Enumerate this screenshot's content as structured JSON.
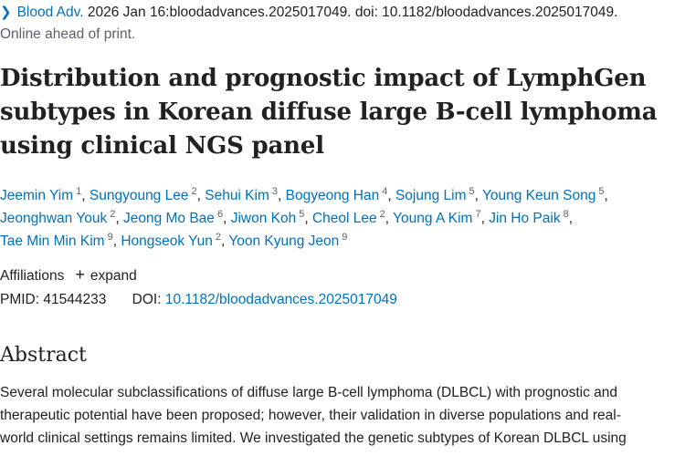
{
  "citation": {
    "journal": "Blood Adv.",
    "details": " 2026 Jan 16:bloodadvances.2025017049. doi: 10.1182/bloodadvances.2025017049.",
    "status": "Online ahead of print."
  },
  "title": {
    "line1": "Distribution and prognostic impact of LymphGen",
    "line2": "subtypes in Korean diffuse large B-cell lymphoma",
    "line3": "using clinical NGS panel"
  },
  "authors": [
    {
      "name": "Jeemin Yim",
      "aff": "1"
    },
    {
      "name": "Sungyoung Lee",
      "aff": "2"
    },
    {
      "name": "Sehui Kim",
      "aff": "3"
    },
    {
      "name": "Bogyeong Han",
      "aff": "4"
    },
    {
      "name": "Sojung Lim",
      "aff": "5"
    },
    {
      "name": "Young Keun Song",
      "aff": "5"
    },
    {
      "name": "Jeonghwan Youk",
      "aff": "2"
    },
    {
      "name": "Jeong Mo Bae",
      "aff": "6"
    },
    {
      "name": "Jiwon Koh",
      "aff": "5"
    },
    {
      "name": "Cheol Lee",
      "aff": "2"
    },
    {
      "name": "Young A Kim",
      "aff": "7"
    },
    {
      "name": "Jin Ho Paik",
      "aff": "8"
    },
    {
      "name": "Tae Min Min Kim",
      "aff": "9"
    },
    {
      "name": "Hongseok Yun",
      "aff": "2"
    },
    {
      "name": "Yoon Kyung Jeon",
      "aff": "9"
    }
  ],
  "affiliations": {
    "label": "Affiliations",
    "expand_label": "expand"
  },
  "identifiers": {
    "pmid_label": "PMID:",
    "pmid": "41544233",
    "doi_label": "DOI:",
    "doi": "10.1182/bloodadvances.2025017049"
  },
  "abstract": {
    "heading": "Abstract",
    "line1": "Several molecular subclassifications of diffuse large B-cell lymphoma (DLBCL) with prognostic and",
    "line2": "therapeutic potential have been proposed; however, their validation in diverse populations and real-",
    "line3": "world clinical settings remains limited. We investigated the genetic subtypes of Korean DLBCL using"
  }
}
